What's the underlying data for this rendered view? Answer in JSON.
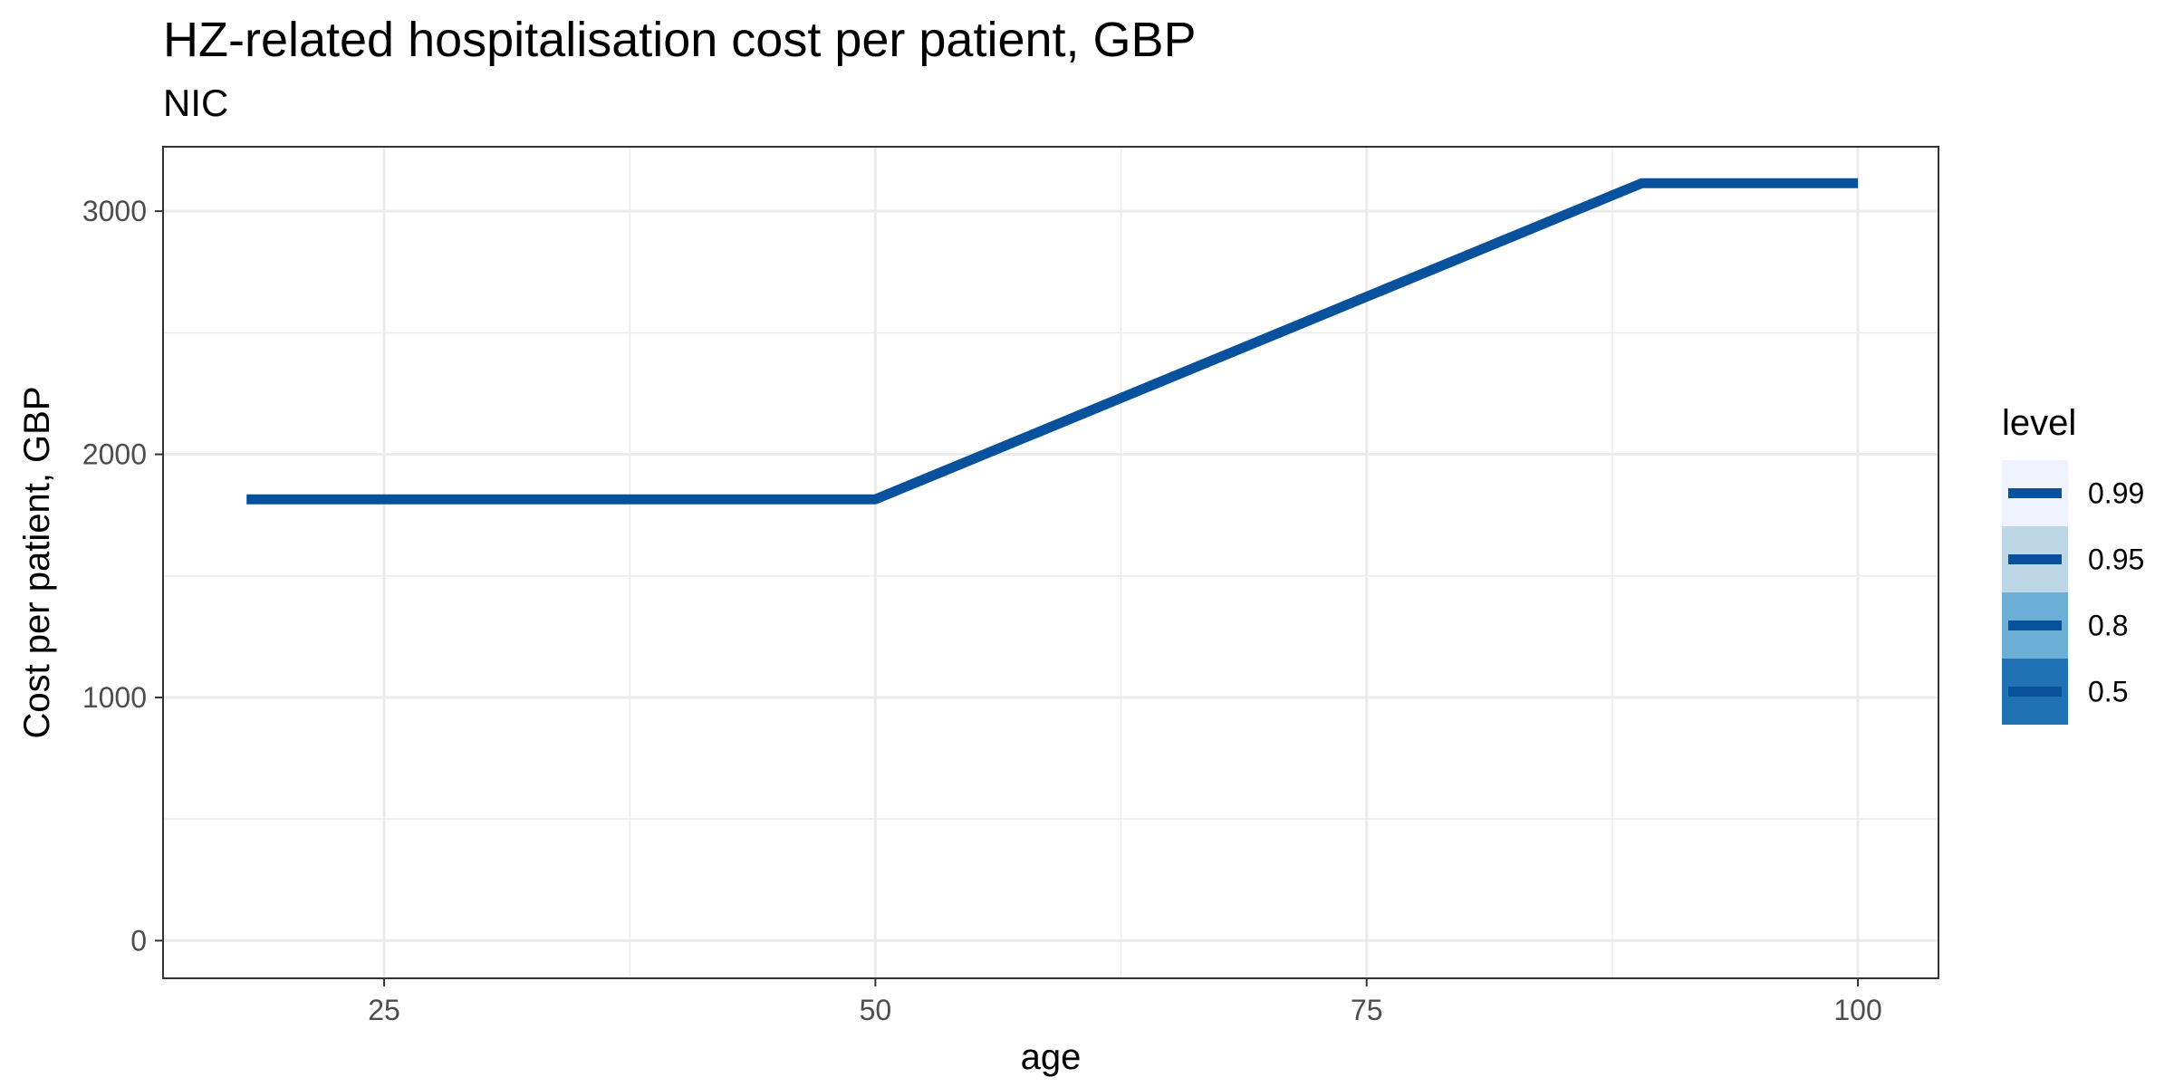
{
  "chart_data": {
    "type": "line",
    "title": "HZ-related hospitalisation cost per patient, GBP",
    "subtitle": "NIC",
    "xlabel": "age",
    "ylabel": "Cost per patient, GBP",
    "xlim": [
      13.75,
      104.1
    ],
    "ylim": [
      -155,
      3265
    ],
    "x_ticks": [
      25,
      50,
      75,
      100
    ],
    "x_minor": [
      37.5,
      62.5,
      87.5
    ],
    "y_ticks": [
      0,
      1000,
      2000,
      3000
    ],
    "y_minor": [
      500,
      1500,
      2500
    ],
    "x_tick_labels": [
      "25",
      "50",
      "75",
      "100"
    ],
    "y_tick_labels": [
      "0",
      "1000",
      "2000",
      "3000"
    ],
    "grid": true,
    "legend_position": "right",
    "legend": {
      "title": "level",
      "items": [
        {
          "label": "0.99",
          "color": "#eff3ff"
        },
        {
          "label": "0.95",
          "color": "#bdd7e7"
        },
        {
          "label": "0.8",
          "color": "#6baed6"
        },
        {
          "label": "0.5",
          "color": "#2171b5"
        }
      ]
    },
    "line_color": "#08519c",
    "series": [
      {
        "x": [
          18,
          50,
          89,
          100
        ],
        "y": [
          1815,
          1815,
          3115,
          3115
        ]
      }
    ]
  }
}
